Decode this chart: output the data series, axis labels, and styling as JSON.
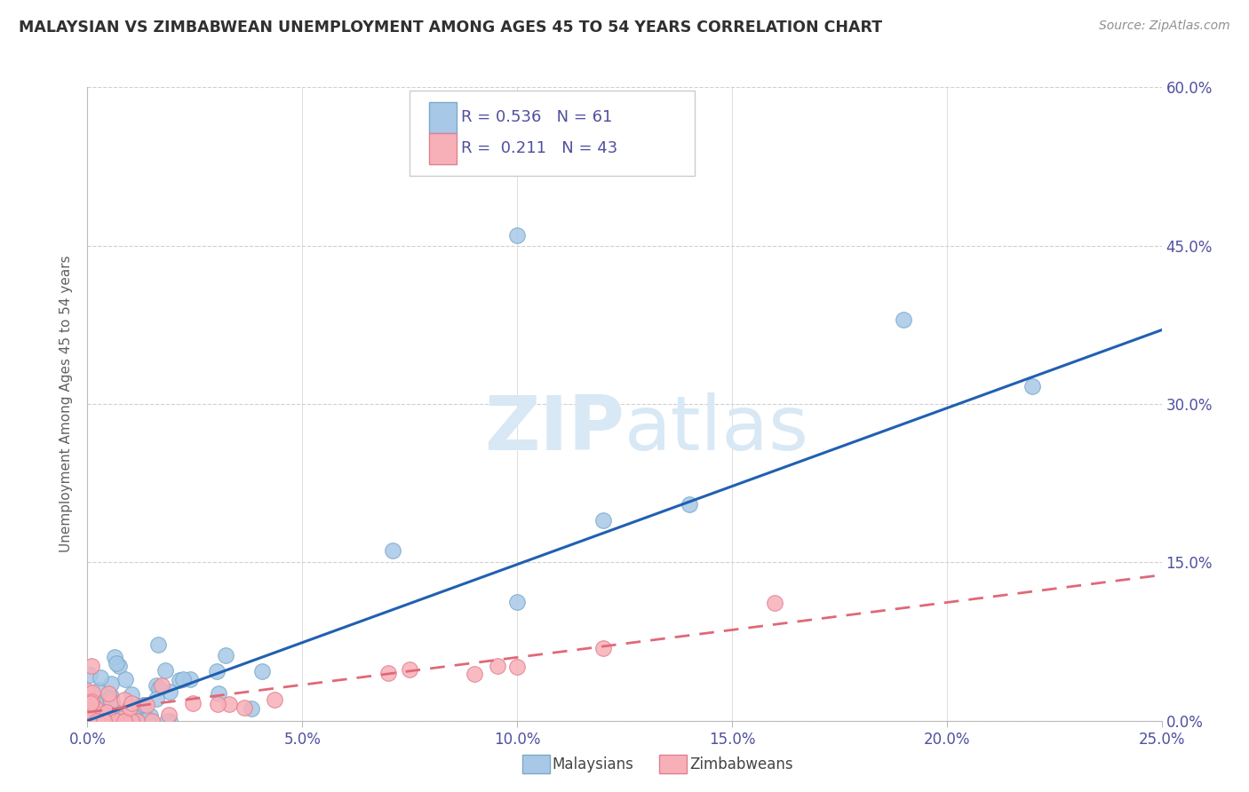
{
  "title": "MALAYSIAN VS ZIMBABWEAN UNEMPLOYMENT AMONG AGES 45 TO 54 YEARS CORRELATION CHART",
  "source": "Source: ZipAtlas.com",
  "ylabel": "Unemployment Among Ages 45 to 54 years",
  "xlim": [
    0.0,
    0.25
  ],
  "ylim": [
    0.0,
    0.6
  ],
  "xticks": [
    0.0,
    0.05,
    0.1,
    0.15,
    0.2,
    0.25
  ],
  "yticks": [
    0.0,
    0.15,
    0.3,
    0.45,
    0.6
  ],
  "xtick_labels": [
    "0.0%",
    "5.0%",
    "10.0%",
    "15.0%",
    "20.0%",
    "25.0%"
  ],
  "ytick_labels": [
    "0.0%",
    "15.0%",
    "30.0%",
    "45.0%",
    "60.0%"
  ],
  "malaysian_R": "0.536",
  "malaysian_N": "61",
  "zimbabwean_R": "0.211",
  "zimbabwean_N": "43",
  "blue_scatter_color": "#a8c8e8",
  "blue_edge_color": "#7aaac8",
  "blue_line_color": "#2060b0",
  "pink_scatter_color": "#f8b0b8",
  "pink_edge_color": "#e08090",
  "pink_line_color": "#e06878",
  "watermark_color": "#d8e8f5",
  "grid_color": "#d0d0d0",
  "background_color": "#ffffff",
  "title_color": "#303030",
  "axis_color": "#5050a0",
  "ylabel_color": "#606060",
  "source_color": "#909090",
  "blue_trend_intercept": 0.0,
  "blue_trend_slope": 1.48,
  "pink_trend_intercept": 0.008,
  "pink_trend_slope": 0.52
}
